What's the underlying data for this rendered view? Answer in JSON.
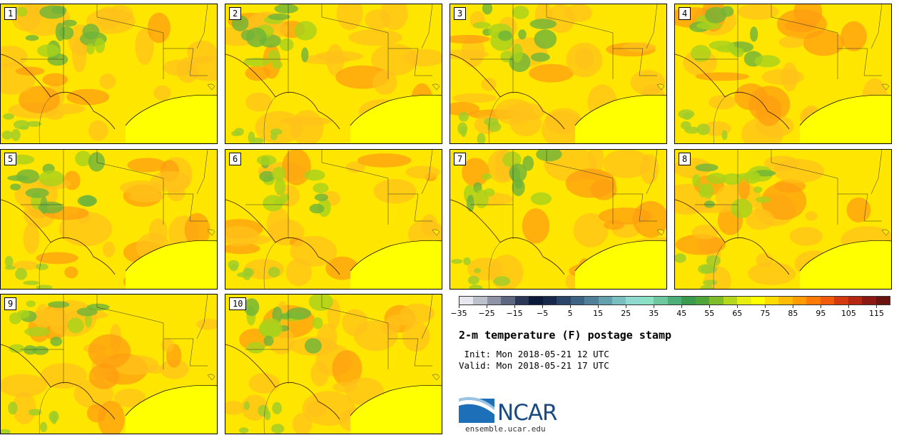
{
  "panels": [
    {
      "label": "1"
    },
    {
      "label": "2"
    },
    {
      "label": "3"
    },
    {
      "label": "4"
    },
    {
      "label": "5"
    },
    {
      "label": "6"
    },
    {
      "label": "7"
    },
    {
      "label": "8"
    },
    {
      "label": "9"
    },
    {
      "label": "10"
    }
  ],
  "colorbar": {
    "colors": [
      "#e6e6ee",
      "#bcbfcc",
      "#8e93a6",
      "#5e6780",
      "#2c3656",
      "#0c1a3a",
      "#17284a",
      "#2b4568",
      "#3d6384",
      "#4f7f99",
      "#62a0ae",
      "#79bfbf",
      "#8fd9cf",
      "#8ae0c2",
      "#6ec79e",
      "#4eae78",
      "#3a9a4e",
      "#4fa43a",
      "#7ebc2c",
      "#b3d81c",
      "#e8ef10",
      "#ffff00",
      "#ffdc00",
      "#ffbc00",
      "#ff9d00",
      "#ff7a00",
      "#f05a0a",
      "#d43a10",
      "#b42812",
      "#8c1a12",
      "#6a1410"
    ],
    "tick_labels": [
      "−35",
      "−25",
      "−15",
      "−5",
      "5",
      "15",
      "25",
      "35",
      "45",
      "55",
      "65",
      "75",
      "85",
      "95",
      "105",
      "115"
    ]
  },
  "title": "2-m temperature (F) postage stamp",
  "init": " Init: Mon 2018-05-21 12 UTC",
  "valid": "Valid: Mon 2018-05-21 17 UTC",
  "logo": {
    "text": "NCAR",
    "color": "#1a4a80",
    "accent": "#2a7fc0"
  },
  "site": "ensemble.ucar.edu"
}
